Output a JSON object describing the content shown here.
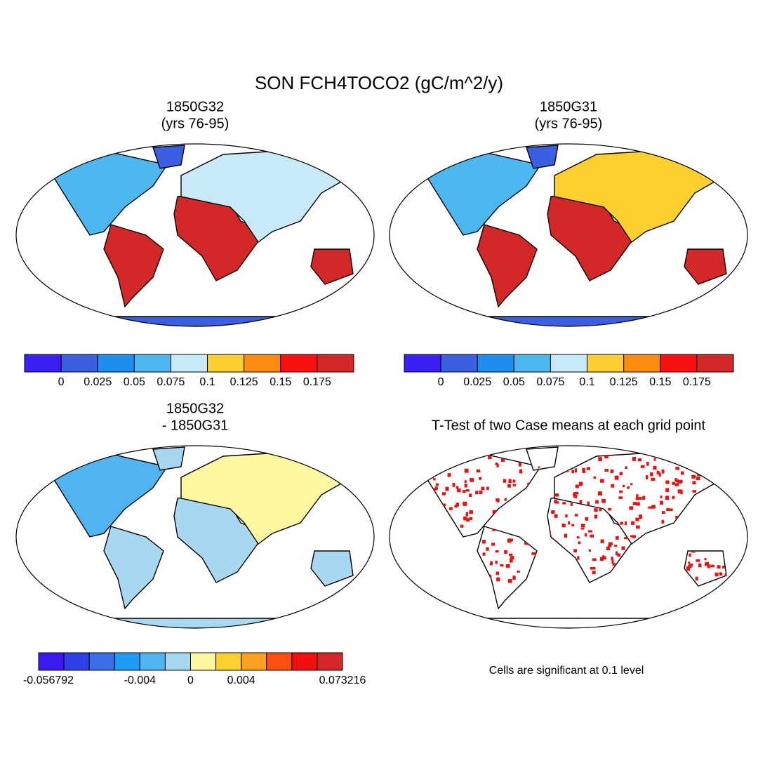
{
  "title": "SON FCH4TOCO2 (gC/m^2/y)",
  "panels": [
    {
      "title": [
        "1850G32",
        "(yrs 76-95)"
      ]
    },
    {
      "title": [
        "1850G31",
        "(yrs 76-95)"
      ]
    },
    {
      "title": [
        "1850G32",
        "- 1850G31"
      ]
    },
    {
      "title": [
        "T-Test of two Case means at each grid point"
      ],
      "note": "Cells are significant at 0.1 level"
    }
  ],
  "colorbars": [
    {
      "colors": [
        "#3b1ff5",
        "#3c5ee0",
        "#1e8ef0",
        "#4db8f0",
        "#c8eaf8",
        "#fdd030",
        "#fb8c10",
        "#fb1010",
        "#d42828"
      ],
      "labels": [
        null,
        "0",
        "0.025",
        "0.05",
        "0.075",
        "0.1",
        "0.125",
        "0.15",
        "0.175",
        null
      ]
    },
    {
      "colors": [
        "#3b1ff5",
        "#3c5ee0",
        "#1e8ef0",
        "#4db8f0",
        "#c8eaf8",
        "#fdd030",
        "#fb8c10",
        "#fb1010",
        "#d42828"
      ],
      "labels": [
        null,
        "0",
        "0.025",
        "0.05",
        "0.075",
        "0.1",
        "0.125",
        "0.15",
        "0.175",
        null
      ]
    },
    {
      "colors": [
        "#3a1af0",
        "#3040e8",
        "#3a6ee8",
        "#1e9cf5",
        "#4fb4ef",
        "#a8d8f0",
        "#fff8a0",
        "#fdd030",
        "#fba020",
        "#fb5010",
        "#f01010",
        "#d42828"
      ],
      "labels": [
        "-0.056792",
        null,
        null,
        null,
        "-0.004",
        null,
        "0",
        null,
        "0.004",
        null,
        null,
        null,
        "0.073216"
      ]
    }
  ]
}
